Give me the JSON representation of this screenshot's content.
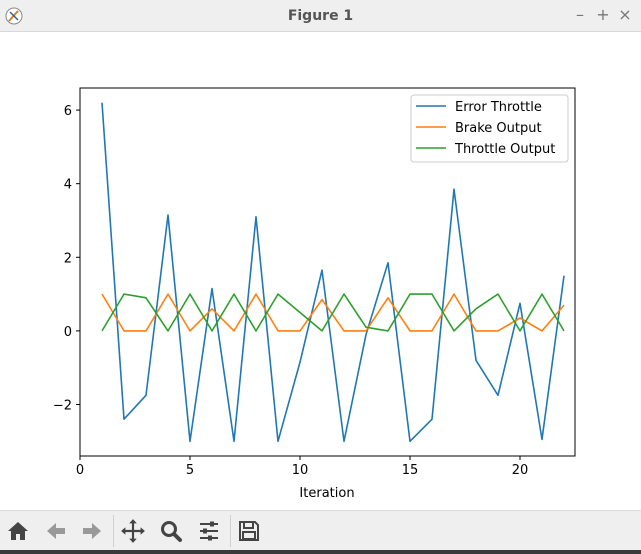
{
  "window": {
    "title": "Figure 1"
  },
  "toolbar": {
    "buttons": [
      {
        "name": "home-icon"
      },
      {
        "name": "back-arrow-icon"
      },
      {
        "name": "forward-arrow-icon"
      },
      {
        "name": "pan-icon"
      },
      {
        "name": "zoom-icon"
      },
      {
        "name": "configure-subplots-icon"
      },
      {
        "name": "save-icon"
      }
    ]
  },
  "chart_data": {
    "type": "line",
    "title": "",
    "xlabel": "Iteration",
    "ylabel": "",
    "xlim": [
      0,
      22.5
    ],
    "ylim": [
      -3.4,
      6.6
    ],
    "xticks": [
      0,
      5,
      10,
      15,
      20
    ],
    "yticks": [
      -2,
      0,
      2,
      4,
      6
    ],
    "tick_labels": {
      "x": [
        "0",
        "5",
        "10",
        "15",
        "20"
      ],
      "y": [
        "−2",
        "0",
        "2",
        "4",
        "6"
      ]
    },
    "grid": false,
    "legend": "top-right",
    "x": [
      1,
      2,
      3,
      4,
      5,
      6,
      7,
      8,
      9,
      10,
      11,
      12,
      13,
      14,
      15,
      16,
      17,
      18,
      19,
      20,
      21,
      22
    ],
    "series": [
      {
        "name": "Error Throttle",
        "color": "#1f77b4",
        "values": [
          6.2,
          -2.4,
          -1.75,
          3.15,
          -3.0,
          1.15,
          -3.0,
          3.1,
          -3.0,
          -0.85,
          1.65,
          -3.0,
          -0.1,
          1.85,
          -3.0,
          -2.4,
          3.85,
          -0.8,
          -1.75,
          0.75,
          -2.95,
          1.5
        ]
      },
      {
        "name": "Brake Output",
        "color": "#ff7f0e",
        "values": [
          1.0,
          0.0,
          0.0,
          1.0,
          0.0,
          0.6,
          0.0,
          1.0,
          0.0,
          0.0,
          0.85,
          0.0,
          0.0,
          0.9,
          0.0,
          0.0,
          1.0,
          0.0,
          0.0,
          0.35,
          0.0,
          0.7
        ]
      },
      {
        "name": "Throttle Output",
        "color": "#2ca02c",
        "values": [
          0.0,
          1.0,
          0.9,
          0.0,
          1.0,
          0.0,
          1.0,
          0.0,
          1.0,
          0.5,
          0.0,
          1.0,
          0.1,
          0.0,
          1.0,
          1.0,
          0.0,
          0.6,
          1.0,
          0.0,
          1.0,
          0.0
        ]
      }
    ]
  }
}
